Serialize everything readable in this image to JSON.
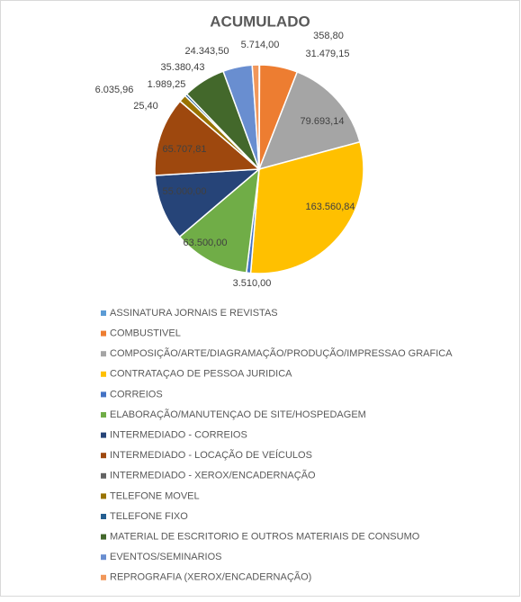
{
  "chart_data": {
    "type": "pie",
    "title": "ACUMULADO",
    "categories": [
      "ASSINATURA JORNAIS E REVISTAS",
      "COMBUSTIVEL",
      "COMPOSIÇÃO/ARTE/DIAGRAMAÇÃO/PRODUÇÃO/IMPRESSAO GRAFICA",
      "CONTRATAÇAO DE PESSOA JURIDICA",
      "CORREIOS",
      "ELABORAÇÃO/MANUTENÇAO DE SITE/HOSPEDAGEM",
      "INTERMEDIADO - CORREIOS",
      "INTERMEDIADO - LOCAÇÃO DE VEÍCULOS",
      "INTERMEDIADO - XEROX/ENCADERNAÇÃO",
      "TELEFONE MOVEL",
      "TELEFONE FIXO",
      "MATERIAL DE ESCRITORIO E OUTROS MATERIAIS DE CONSUMO",
      "EVENTOS/SEMINARIOS",
      "REPROGRAFIA (XEROX/ENCADERNAÇÃO)"
    ],
    "values": [
      358.8,
      31479.15,
      79693.14,
      163560.84,
      3510,
      63500,
      55000,
      65707.81,
      25.4,
      6035.96,
      1989.25,
      35380.43,
      24343.5,
      5714
    ],
    "value_labels": [
      "358,80",
      "31.479,15",
      "79.693,14",
      "163.560,84",
      "3.510,00",
      "63.500,00",
      "55.000,00",
      "65.707,81",
      "25,40",
      "6.035,96",
      "1.989,25",
      "35.380,43",
      "24.343,50",
      "5.714,00"
    ],
    "colors": [
      "#5b9bd5",
      "#ed7d31",
      "#a5a5a5",
      "#ffc000",
      "#4472c4",
      "#70ad47",
      "#264478",
      "#9e480e",
      "#636363",
      "#997300",
      "#255e91",
      "#43682b",
      "#698ed0",
      "#f1975a"
    ],
    "legend": "bottom"
  }
}
